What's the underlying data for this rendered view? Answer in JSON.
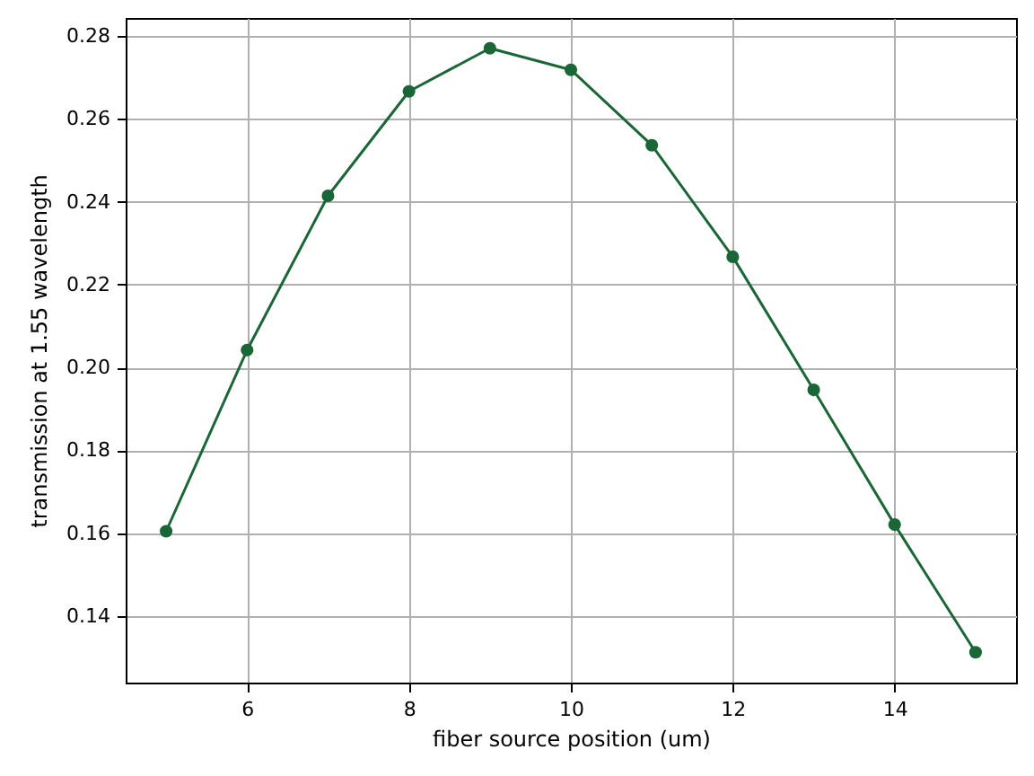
{
  "chart_data": {
    "type": "line",
    "xlabel": "fiber source position (um)",
    "ylabel": "transmission at 1.55 wavelength",
    "x": [
      5,
      6,
      7,
      8,
      9,
      10,
      11,
      12,
      13,
      14,
      15
    ],
    "series": [
      {
        "color": "#1a6636",
        "values": [
          0.1605,
          0.2042,
          0.2414,
          0.2666,
          0.277,
          0.2718,
          0.2536,
          0.2267,
          0.1946,
          0.1621,
          0.1313
        ]
      }
    ],
    "xlim": [
      4.5,
      15.5
    ],
    "xticks": [
      6,
      8,
      10,
      12,
      14
    ],
    "ylim": [
      0.124,
      0.2843
    ],
    "yticks": [
      0.14,
      0.16,
      0.18,
      {
        "value": 0.2,
        "label": "0.20"
      },
      0.22,
      0.24,
      0.26,
      0.28
    ],
    "grid": true,
    "marker": "circle",
    "line_style": "solid"
  }
}
